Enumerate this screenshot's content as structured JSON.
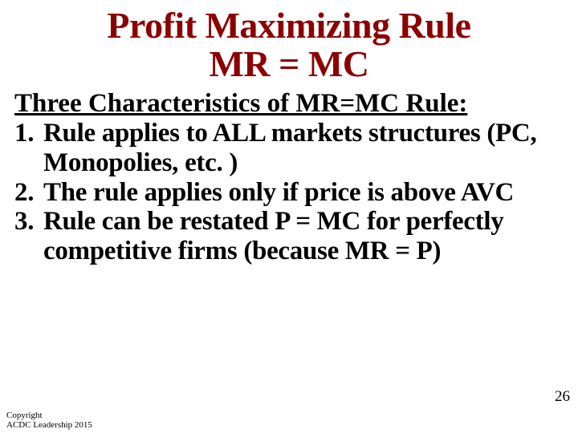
{
  "title": {
    "line1": "Profit Maximizing Rule",
    "line2": "MR = MC",
    "color": "#8b0000",
    "fontsize": 46,
    "line_height": 1.05
  },
  "subtitle": {
    "text": "Three Characteristics of MR=MC Rule:",
    "color": "#000000",
    "fontsize": 33
  },
  "list": {
    "items": [
      "Rule applies to ALL markets structures (PC, Monopolies, etc. )",
      "The rule applies only if price is above AVC",
      "Rule can be restated P = MC for perfectly competitive firms (because MR = P)"
    ],
    "color": "#000000",
    "fontsize": 33,
    "line_height": 1.12
  },
  "copyright": {
    "line1": "Copyright",
    "line2": "ACDC Leadership 2015",
    "color": "#000000",
    "fontsize": 11
  },
  "page_number": {
    "text": "26",
    "color": "#000000",
    "fontsize": 19
  }
}
